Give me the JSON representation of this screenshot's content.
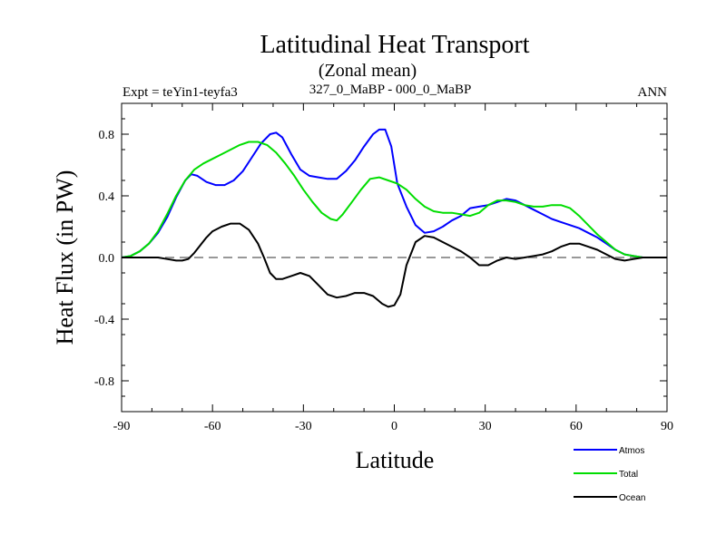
{
  "chart_data": {
    "type": "line",
    "title": "Latitudinal Heat Transport",
    "subtitle": "(Zonal mean)",
    "left_label": "Expt = teYin1-teyfa3",
    "center_label": "327_0_MaBP - 000_0_MaBP",
    "right_label": "ANN",
    "xlabel": "Latitude",
    "ylabel": "Heat Flux (in PW)",
    "xlim": [
      -90,
      90
    ],
    "ylim": [
      -1.0,
      1.0
    ],
    "xticks": [
      -90,
      -60,
      -30,
      0,
      30,
      60,
      90
    ],
    "xtick_labels": [
      "-90",
      "-60",
      "-30",
      "0",
      "30",
      "60",
      "90"
    ],
    "yticks": [
      -0.8,
      -0.4,
      0.0,
      0.4,
      0.8
    ],
    "ytick_labels": [
      "-0.8",
      "-0.4",
      "0.0",
      "0.4",
      "0.8"
    ],
    "zero_line": "dashed",
    "legend_position": "bottom-right",
    "series": [
      {
        "name": "Atmos",
        "color": "#0000ff",
        "x": [
          -90,
          -87,
          -84,
          -81,
          -78,
          -75,
          -72,
          -69,
          -67,
          -65,
          -62,
          -59,
          -56,
          -53,
          -50,
          -47,
          -44,
          -41,
          -39,
          -37,
          -34,
          -31,
          -28,
          -25,
          -22,
          -19,
          -16,
          -13,
          -10,
          -7,
          -5,
          -3,
          -1,
          1,
          4,
          7,
          10,
          13,
          16,
          19,
          22,
          25,
          28,
          31,
          34,
          37,
          40,
          43,
          46,
          49,
          52,
          55,
          58,
          61,
          64,
          67,
          70,
          73,
          76,
          79,
          82,
          85,
          88,
          90
        ],
        "values": [
          0.0,
          0.01,
          0.04,
          0.09,
          0.16,
          0.26,
          0.39,
          0.5,
          0.54,
          0.53,
          0.49,
          0.47,
          0.47,
          0.5,
          0.56,
          0.65,
          0.74,
          0.8,
          0.81,
          0.78,
          0.67,
          0.57,
          0.53,
          0.52,
          0.51,
          0.51,
          0.56,
          0.63,
          0.72,
          0.8,
          0.83,
          0.83,
          0.72,
          0.48,
          0.33,
          0.21,
          0.16,
          0.17,
          0.2,
          0.24,
          0.27,
          0.32,
          0.33,
          0.34,
          0.36,
          0.38,
          0.37,
          0.34,
          0.31,
          0.28,
          0.25,
          0.23,
          0.21,
          0.19,
          0.16,
          0.13,
          0.09,
          0.05,
          0.02,
          0.01,
          0.0,
          0.0,
          0.0,
          0.0
        ]
      },
      {
        "name": "Total",
        "color": "#00dd00",
        "x": [
          -90,
          -87,
          -84,
          -81,
          -78,
          -75,
          -72,
          -69,
          -66,
          -63,
          -60,
          -57,
          -54,
          -51,
          -48,
          -45,
          -42,
          -39,
          -36,
          -33,
          -30,
          -27,
          -24,
          -21,
          -19,
          -17,
          -14,
          -11,
          -8,
          -5,
          -2,
          1,
          4,
          7,
          10,
          13,
          16,
          19,
          22,
          25,
          28,
          31,
          34,
          37,
          40,
          43,
          46,
          49,
          52,
          55,
          58,
          61,
          64,
          67,
          70,
          73,
          76,
          79,
          82,
          85,
          88,
          90
        ],
        "values": [
          0.0,
          0.01,
          0.04,
          0.09,
          0.17,
          0.28,
          0.4,
          0.5,
          0.57,
          0.61,
          0.64,
          0.67,
          0.7,
          0.73,
          0.75,
          0.75,
          0.73,
          0.68,
          0.61,
          0.53,
          0.44,
          0.36,
          0.29,
          0.25,
          0.24,
          0.28,
          0.36,
          0.44,
          0.51,
          0.52,
          0.5,
          0.48,
          0.44,
          0.38,
          0.33,
          0.3,
          0.29,
          0.29,
          0.28,
          0.27,
          0.29,
          0.34,
          0.37,
          0.37,
          0.36,
          0.34,
          0.33,
          0.33,
          0.34,
          0.34,
          0.32,
          0.27,
          0.21,
          0.15,
          0.1,
          0.05,
          0.02,
          0.01,
          0.0,
          0.0,
          0.0,
          0.0
        ]
      },
      {
        "name": "Ocean",
        "color": "#000000",
        "x": [
          -90,
          -87,
          -84,
          -81,
          -78,
          -75,
          -72,
          -70,
          -68,
          -66,
          -64,
          -62,
          -60,
          -57,
          -54,
          -51,
          -48,
          -45,
          -43,
          -41,
          -39,
          -37,
          -34,
          -31,
          -28,
          -25,
          -22,
          -19,
          -16,
          -13,
          -10,
          -7,
          -4,
          -2,
          0,
          2,
          4,
          7,
          10,
          13,
          16,
          19,
          22,
          25,
          28,
          31,
          34,
          37,
          40,
          43,
          46,
          49,
          52,
          55,
          58,
          61,
          64,
          67,
          70,
          73,
          76,
          79,
          82,
          85,
          88,
          90
        ],
        "values": [
          0.0,
          0.0,
          0.0,
          0.0,
          0.0,
          -0.01,
          -0.02,
          -0.02,
          -0.01,
          0.03,
          0.08,
          0.13,
          0.17,
          0.2,
          0.22,
          0.22,
          0.18,
          0.09,
          0.0,
          -0.1,
          -0.14,
          -0.14,
          -0.12,
          -0.1,
          -0.12,
          -0.18,
          -0.24,
          -0.26,
          -0.25,
          -0.23,
          -0.23,
          -0.25,
          -0.3,
          -0.32,
          -0.31,
          -0.24,
          -0.05,
          0.1,
          0.14,
          0.13,
          0.1,
          0.07,
          0.04,
          0.0,
          -0.05,
          -0.05,
          -0.02,
          0.0,
          -0.01,
          0.0,
          0.01,
          0.02,
          0.04,
          0.07,
          0.09,
          0.09,
          0.07,
          0.05,
          0.02,
          -0.01,
          -0.02,
          -0.01,
          0.0,
          0.0,
          0.0,
          0.0
        ]
      }
    ]
  }
}
